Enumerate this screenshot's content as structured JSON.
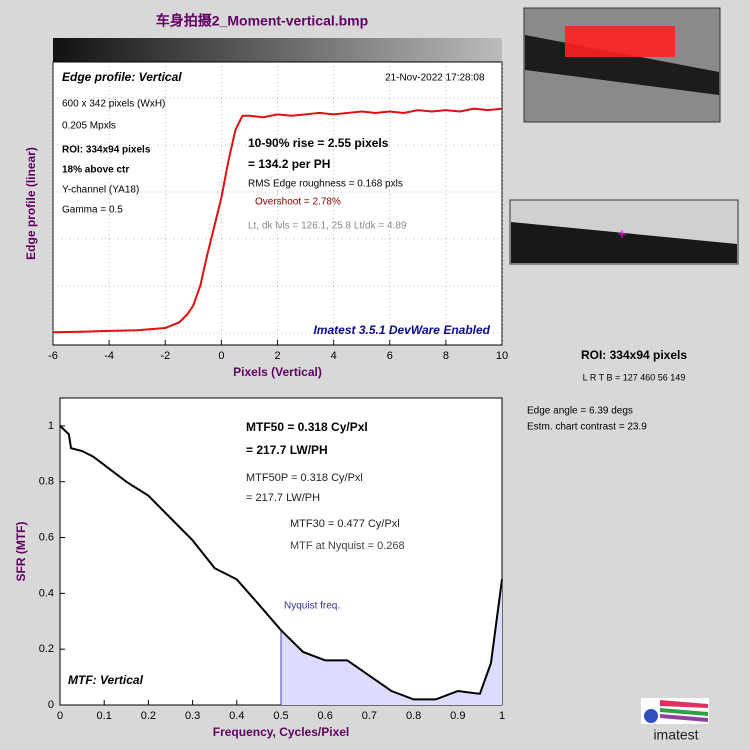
{
  "title": "车身拍摄2_Moment-vertical.bmp",
  "roi_panel": {
    "roi": "ROI:  334x94 pixels",
    "bounds": "L R  T B = 127 460  56 149",
    "edge_angle": "Edge angle = 6.39 degs",
    "contrast": "Estm. chart contrast = 23.9"
  },
  "logo": "imatest",
  "chart_data": [
    {
      "type": "line",
      "xlabel": "Pixels (Vertical)",
      "ylabel": "Edge profile (linear)",
      "xlim": [
        -6,
        10
      ],
      "xticks": [
        -6,
        -4,
        -2,
        0,
        2,
        4,
        6,
        8,
        10
      ],
      "ylim": [
        0,
        1
      ],
      "grid": true,
      "x": [
        -6,
        -5,
        -4,
        -3,
        -2,
        -1.5,
        -1.2,
        -1,
        -0.75,
        -0.5,
        -0.25,
        0,
        0.25,
        0.5,
        0.75,
        1,
        1.5,
        2,
        2.5,
        3,
        3.5,
        4,
        4.5,
        5,
        5.5,
        6,
        6.5,
        7,
        7.5,
        8,
        8.5,
        9,
        9.5,
        10
      ],
      "series": [
        {
          "color": "#e01010",
          "values": [
            0.045,
            0.047,
            0.05,
            0.052,
            0.06,
            0.08,
            0.11,
            0.14,
            0.21,
            0.32,
            0.42,
            0.52,
            0.65,
            0.76,
            0.81,
            0.81,
            0.805,
            0.815,
            0.81,
            0.815,
            0.82,
            0.815,
            0.82,
            0.825,
            0.82,
            0.825,
            0.82,
            0.83,
            0.825,
            0.83,
            0.825,
            0.835,
            0.83,
            0.835
          ]
        }
      ],
      "annotations": [
        "Edge profile: Vertical",
        "21-Nov-2022 17:28:08",
        "600 x 342 pixels (WxH)",
        "0.205 Mpxls",
        "ROI:  334x94 pixels",
        "18% above ctr",
        "Y-channel  (YA18)",
        "Gamma = 0.5",
        "10-90% rise = 2.55 pixels",
        "= 134.2 per PH",
        "RMS Edge roughness = 0.168 pxls",
        "Overshoot = 2.78%",
        "Lt, dk lvls = 126.1, 25.8   Lt/dk = 4.89",
        "Imatest 3.5.1 DevWare Enabled"
      ]
    },
    {
      "type": "line",
      "xlabel": "Frequency, Cycles/Pixel",
      "ylabel": "SFR (MTF)",
      "xlim": [
        0,
        1
      ],
      "xticks": [
        0,
        0.1,
        0.2,
        0.3,
        0.4,
        0.5,
        0.6,
        0.7,
        0.8,
        0.9,
        1
      ],
      "ylim": [
        0,
        1.1
      ],
      "yticks": [
        0,
        0.2,
        0.4,
        0.6,
        0.8,
        1
      ],
      "grid": false,
      "nyquist": 0.5,
      "x": [
        0,
        0.02,
        0.025,
        0.05,
        0.075,
        0.1,
        0.15,
        0.2,
        0.25,
        0.3,
        0.35,
        0.4,
        0.45,
        0.5,
        0.55,
        0.6,
        0.65,
        0.7,
        0.75,
        0.8,
        0.85,
        0.9,
        0.95,
        0.975,
        1
      ],
      "series": [
        {
          "color": "#000000",
          "values": [
            1.0,
            0.97,
            0.92,
            0.91,
            0.89,
            0.86,
            0.8,
            0.75,
            0.67,
            0.59,
            0.49,
            0.45,
            0.36,
            0.268,
            0.19,
            0.16,
            0.16,
            0.105,
            0.05,
            0.02,
            0.02,
            0.05,
            0.04,
            0.15,
            0.45
          ]
        }
      ],
      "annotations": [
        "MTF50 = 0.318 Cy/Pxl",
        "= 217.7 LW/PH",
        "MTF50P = 0.318 Cy/Pxl",
        "= 217.7 LW/PH",
        "MTF30 = 0.477 Cy/Pxl",
        "MTF at Nyquist = 0.268",
        "Nyquist freq.",
        "MTF: Vertical"
      ]
    }
  ]
}
